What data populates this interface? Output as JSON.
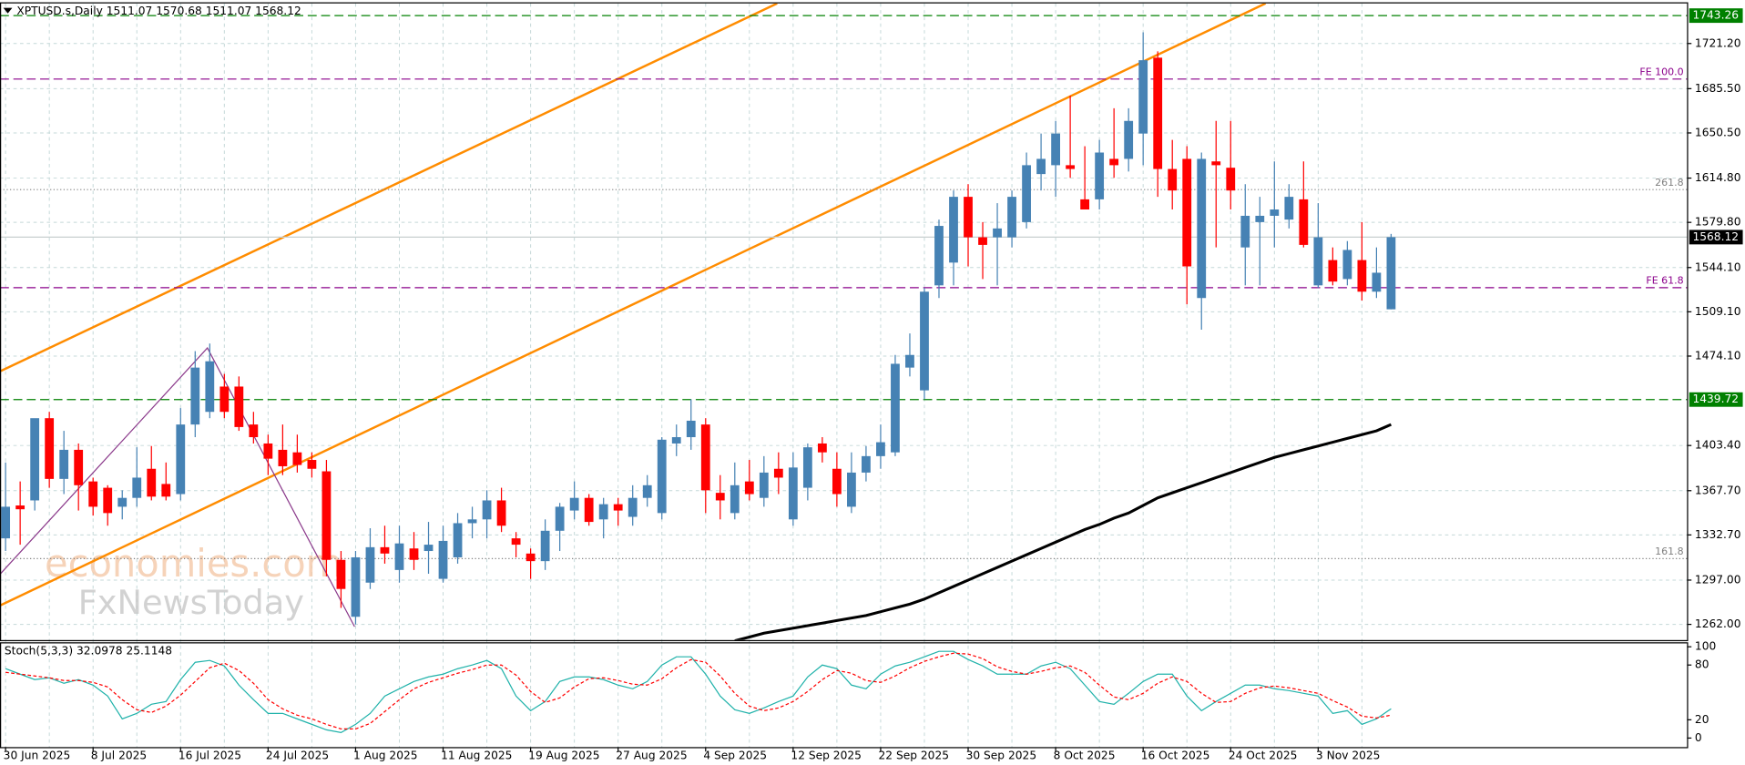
{
  "chart_data": [
    {
      "type": "candlestick",
      "title": "XPTUSD.s,Daily  1511.07 1570.68 1511.07 1568.12",
      "categories": [
        "30 Jun 2025",
        null,
        null,
        null,
        null,
        null,
        "8 Jul 2025",
        null,
        null,
        null,
        null,
        null,
        "16 Jul 2025",
        null,
        null,
        null,
        null,
        null,
        "24 Jul 2025",
        null,
        null,
        null,
        null,
        null,
        "1 Aug 2025",
        null,
        null,
        null,
        null,
        null,
        "11 Aug 2025",
        null,
        null,
        null,
        null,
        null,
        "19 Aug 2025",
        null,
        null,
        null,
        null,
        null,
        "27 Aug 2025",
        null,
        null,
        null,
        null,
        null,
        "4 Sep 2025",
        null,
        null,
        null,
        null,
        null,
        "12 Sep 2025",
        null,
        null,
        null,
        null,
        null,
        "22 Sep 2025",
        null,
        null,
        null,
        null,
        null,
        "30 Sep 2025",
        null,
        null,
        null,
        null,
        null,
        "8 Oct 2025",
        null,
        null,
        null,
        null,
        null,
        "16 Oct 2025",
        null,
        null,
        null,
        null,
        null,
        "24 Oct 2025",
        null,
        null,
        null,
        null,
        null,
        "3 Nov 2025",
        null,
        null,
        null,
        null,
        null
      ],
      "open": [
        1330,
        1356,
        1360,
        1425,
        1377,
        1400,
        1375,
        1370,
        1355,
        1362,
        1385,
        1373,
        1365,
        1420,
        1430,
        1450,
        1450,
        1420,
        1405,
        1400,
        1398,
        1392,
        1383,
        1313,
        1268,
        1295,
        1323,
        1305,
        1322,
        1320,
        1298,
        1315,
        1342,
        1345,
        1360,
        1330,
        1318,
        1312,
        1336,
        1352,
        1362,
        1345,
        1357,
        1347,
        1362,
        1350,
        1405,
        1410,
        1420,
        1366,
        1350,
        1375,
        1362,
        1385,
        1345,
        1370,
        1405,
        1385,
        1355,
        1382,
        1395,
        1398,
        1465,
        1447,
        1530,
        1548,
        1600,
        1568,
        1568,
        1568,
        1580,
        1618,
        1625,
        1625,
        1598,
        1598,
        1630,
        1630,
        1650,
        1710,
        1622,
        1630,
        1520,
        1628,
        1623,
        1560,
        1580,
        1585,
        1582,
        1598,
        1530,
        1550,
        1535,
        1550,
        1525,
        1511.07
      ],
      "high": [
        1390,
        1375,
        1420,
        1430,
        1415,
        1405,
        1378,
        1372,
        1368,
        1402,
        1403,
        1390,
        1433,
        1478,
        1484,
        1460,
        1458,
        1430,
        1412,
        1420,
        1412,
        1398,
        1392,
        1320,
        1320,
        1338,
        1340,
        1340,
        1335,
        1343,
        1340,
        1350,
        1355,
        1368,
        1370,
        1335,
        1322,
        1345,
        1358,
        1375,
        1365,
        1362,
        1362,
        1372,
        1380,
        1410,
        1420,
        1440,
        1425,
        1380,
        1390,
        1392,
        1395,
        1398,
        1398,
        1405,
        1410,
        1398,
        1398,
        1403,
        1420,
        1475,
        1492,
        1528,
        1582,
        1605,
        1610,
        1580,
        1595,
        1605,
        1635,
        1650,
        1660,
        1680,
        1640,
        1645,
        1670,
        1670,
        1730,
        1715,
        1645,
        1640,
        1635,
        1660,
        1660,
        1610,
        1600,
        1628,
        1610,
        1628,
        1595,
        1560,
        1565,
        1580,
        1560,
        1570.68
      ],
      "low": [
        1320,
        1325,
        1352,
        1370,
        1365,
        1352,
        1348,
        1340,
        1345,
        1355,
        1360,
        1360,
        1360,
        1410,
        1425,
        1425,
        1415,
        1405,
        1380,
        1380,
        1382,
        1378,
        1300,
        1275,
        1262,
        1290,
        1310,
        1295,
        1305,
        1302,
        1295,
        1310,
        1330,
        1330,
        1335,
        1315,
        1298,
        1305,
        1320,
        1345,
        1340,
        1330,
        1340,
        1340,
        1355,
        1345,
        1395,
        1400,
        1350,
        1345,
        1345,
        1360,
        1355,
        1365,
        1340,
        1360,
        1390,
        1355,
        1350,
        1375,
        1385,
        1395,
        1458,
        1440,
        1520,
        1530,
        1545,
        1535,
        1530,
        1560,
        1575,
        1605,
        1600,
        1615,
        1590,
        1590,
        1615,
        1620,
        1625,
        1600,
        1590,
        1515,
        1495,
        1560,
        1590,
        1530,
        1530,
        1560,
        1575,
        1560,
        1528,
        1530,
        1530,
        1518,
        1520,
        1511.07
      ],
      "close": [
        1355,
        1353,
        1425,
        1377,
        1400,
        1372,
        1355,
        1350,
        1362,
        1378,
        1363,
        1363,
        1420,
        1465,
        1470,
        1430,
        1418,
        1410,
        1393,
        1387,
        1388,
        1385,
        1313,
        1290,
        1315,
        1323,
        1318,
        1326,
        1313,
        1325,
        1328,
        1342,
        1345,
        1360,
        1340,
        1325,
        1312,
        1336,
        1355,
        1362,
        1343,
        1357,
        1352,
        1362,
        1372,
        1408,
        1410,
        1423,
        1368,
        1360,
        1372,
        1365,
        1382,
        1378,
        1386,
        1402,
        1398,
        1365,
        1382,
        1395,
        1406,
        1468,
        1475,
        1525,
        1577,
        1600,
        1568,
        1562,
        1575,
        1600,
        1625,
        1630,
        1650,
        1622,
        1590,
        1635,
        1625,
        1660,
        1708,
        1622,
        1605,
        1545,
        1630,
        1625,
        1605,
        1585,
        1585,
        1590,
        1600,
        1562,
        1568,
        1533,
        1558,
        1525,
        1540,
        1568.12
      ],
      "up_color": "#4682b4",
      "down_color": "#ff0000",
      "moving_average": {
        "color": "#000000",
        "values": [
          null,
          null,
          null,
          null,
          null,
          null,
          null,
          null,
          null,
          null,
          null,
          null,
          null,
          null,
          null,
          null,
          null,
          null,
          null,
          null,
          null,
          null,
          null,
          null,
          null,
          null,
          null,
          null,
          null,
          null,
          null,
          null,
          null,
          null,
          null,
          null,
          null,
          null,
          null,
          null,
          null,
          null,
          null,
          null,
          null,
          null,
          null,
          null,
          null,
          null,
          1249,
          1252,
          1255,
          1257,
          1259,
          1261,
          1263,
          1265,
          1267,
          1269,
          1272,
          1275,
          1278,
          1282,
          1287,
          1292,
          1297,
          1302,
          1307,
          1312,
          1317,
          1322,
          1327,
          1332,
          1337,
          1341,
          1346,
          1350,
          1356,
          1362,
          1366,
          1370,
          1374,
          1378,
          1382,
          1386,
          1390,
          1394,
          1397,
          1400,
          1403,
          1406,
          1409,
          1412,
          1415,
          1420
        ]
      },
      "ylim": [
        1249.6,
        1752.9
      ],
      "yticks": [
        {
          "value": 1262,
          "label": "1262.00"
        },
        {
          "value": 1297,
          "label": "1297.00"
        },
        {
          "value": 1332.7,
          "label": "1332.70"
        },
        {
          "value": 1367.7,
          "label": "1367.70"
        },
        {
          "value": 1403.4,
          "label": "1403.40"
        },
        {
          "value": 1474.1,
          "label": "1474.10"
        },
        {
          "value": 1509.1,
          "label": "1509.10"
        },
        {
          "value": 1544.1,
          "label": "1544.10"
        },
        {
          "value": 1579.8,
          "label": "1579.80"
        },
        {
          "value": 1614.8,
          "label": "1614.80"
        },
        {
          "value": 1650.5,
          "label": "1650.50"
        },
        {
          "value": 1685.5,
          "label": "1685.50"
        },
        {
          "value": 1721.2,
          "label": "1721.20"
        }
      ],
      "grid": true,
      "levels": [
        {
          "price": 1743.26,
          "color": "#008000",
          "dash": "8,4",
          "tag": true
        },
        {
          "price": 1693.1,
          "label": "FE 100.0",
          "color": "#8b008b",
          "dash": "8,4"
        },
        {
          "price": 1605.7,
          "label": "261.8",
          "color": "#808080",
          "dash": "1,2"
        },
        {
          "price": 1568.12,
          "color": "#c8d0d0",
          "tag": true,
          "tag_color": "#000000"
        },
        {
          "price": 1528.2,
          "label": "FE 61.8",
          "color": "#8b008b",
          "dash": "8,4"
        },
        {
          "price": 1439.72,
          "color": "#008000",
          "dash": "8,4",
          "tag": true
        },
        {
          "price": 1314.0,
          "label": "161.8",
          "color": "#808080",
          "dash": "1,2"
        }
      ]
    },
    {
      "type": "line",
      "title": "Stoch(5,3,3) 32.0978 25.1148",
      "series": [
        {
          "color": "#20b2aa",
          "values": [
            76,
            70,
            64,
            66,
            60,
            64,
            58,
            46,
            21,
            27,
            37,
            40,
            64,
            83,
            85,
            79,
            58,
            42,
            27,
            27,
            21,
            15,
            9,
            6,
            15,
            27,
            46,
            54,
            62,
            67,
            70,
            76,
            80,
            85,
            76,
            46,
            30,
            40,
            62,
            67,
            67,
            64,
            58,
            54,
            62,
            80,
            89,
            89,
            70,
            46,
            31,
            27,
            33,
            40,
            46,
            67,
            80,
            76,
            58,
            54,
            70,
            79,
            83,
            89,
            95,
            95,
            86,
            79,
            70,
            70,
            70,
            79,
            83,
            76,
            58,
            40,
            37,
            49,
            62,
            70,
            70,
            46,
            30,
            40,
            49,
            58,
            58,
            54,
            52,
            49,
            46,
            27,
            30,
            15,
            21,
            32.0978
          ]
        },
        {
          "color": "#ff0000",
          "dash": "3,2",
          "values": [
            72,
            70,
            68,
            66,
            63,
            63,
            61,
            56,
            42,
            31,
            28,
            35,
            47,
            62,
            77,
            82,
            74,
            60,
            42,
            32,
            25,
            21,
            15,
            10,
            10,
            16,
            29,
            42,
            54,
            61,
            66,
            71,
            75,
            80,
            80,
            69,
            51,
            39,
            44,
            56,
            65,
            66,
            63,
            59,
            58,
            65,
            77,
            86,
            83,
            68,
            49,
            35,
            30,
            33,
            40,
            51,
            64,
            74,
            71,
            63,
            61,
            68,
            77,
            84,
            89,
            93,
            92,
            87,
            78,
            73,
            70,
            73,
            77,
            79,
            72,
            58,
            45,
            42,
            49,
            60,
            67,
            62,
            49,
            39,
            40,
            49,
            55,
            57,
            55,
            52,
            49,
            41,
            34,
            24,
            22,
            25.1148
          ]
        }
      ],
      "ylim": [
        -9.9,
        104.9
      ],
      "yticks": [
        0,
        20,
        80,
        100
      ]
    }
  ],
  "watermark": {
    "brand": "economies.com",
    "sub": "FxNewsToday"
  }
}
